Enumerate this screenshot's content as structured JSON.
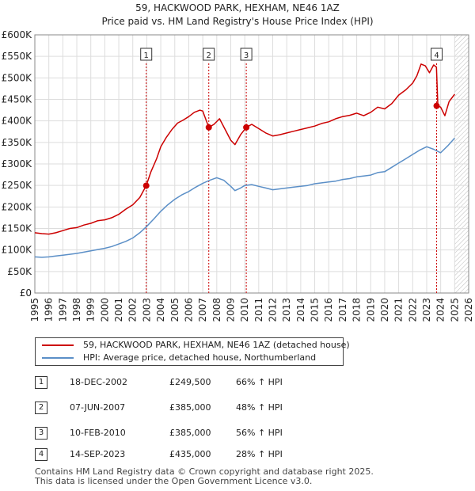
{
  "chart_data": {
    "type": "line",
    "title": "59, HACKWOOD PARK, HEXHAM, NE46 1AZ",
    "subtitle": "Price paid vs. HM Land Registry's House Price Index (HPI)",
    "xlabel": "",
    "ylabel": "",
    "xlim": [
      1995,
      2026
    ],
    "ylim": [
      0,
      600000
    ],
    "y_ticks": [
      {
        "value": 0,
        "label": "£0"
      },
      {
        "value": 50000,
        "label": "£50K"
      },
      {
        "value": 100000,
        "label": "£100K"
      },
      {
        "value": 150000,
        "label": "£150K"
      },
      {
        "value": 200000,
        "label": "£200K"
      },
      {
        "value": 250000,
        "label": "£250K"
      },
      {
        "value": 300000,
        "label": "£300K"
      },
      {
        "value": 350000,
        "label": "£350K"
      },
      {
        "value": 400000,
        "label": "£400K"
      },
      {
        "value": 450000,
        "label": "£450K"
      },
      {
        "value": 500000,
        "label": "£500K"
      },
      {
        "value": 550000,
        "label": "£550K"
      },
      {
        "value": 600000,
        "label": "£600K"
      }
    ],
    "x_ticks": [
      "1995",
      "1996",
      "1997",
      "1998",
      "1999",
      "2000",
      "2001",
      "2002",
      "2003",
      "2004",
      "2005",
      "2006",
      "2007",
      "2008",
      "2009",
      "2010",
      "2011",
      "2012",
      "2013",
      "2014",
      "2015",
      "2016",
      "2017",
      "2018",
      "2019",
      "2020",
      "2021",
      "2022",
      "2023",
      "2024",
      "2025",
      "2026"
    ],
    "grid": true,
    "hatched_future_from": 2025.0,
    "series": [
      {
        "name": "59, HACKWOOD PARK, HEXHAM, NE46 1AZ (detached house)",
        "color": "#cc0000",
        "x": [
          1995.0,
          1995.5,
          1996.0,
          1996.5,
          1997.0,
          1997.5,
          1998.0,
          1998.5,
          1999.0,
          1999.5,
          2000.0,
          2000.5,
          2001.0,
          2001.5,
          2002.0,
          2002.5,
          2002.96,
          2003.3,
          2003.7,
          2004.0,
          2004.4,
          2004.8,
          2005.2,
          2005.6,
          2006.0,
          2006.4,
          2006.8,
          2007.0,
          2007.43,
          2007.8,
          2008.2,
          2008.6,
          2009.0,
          2009.3,
          2009.7,
          2010.11,
          2010.5,
          2011.0,
          2011.5,
          2012.0,
          2012.5,
          2013.0,
          2013.5,
          2014.0,
          2014.5,
          2015.0,
          2015.5,
          2016.0,
          2016.5,
          2017.0,
          2017.5,
          2018.0,
          2018.5,
          2019.0,
          2019.5,
          2020.0,
          2020.5,
          2021.0,
          2021.5,
          2022.0,
          2022.3,
          2022.6,
          2022.9,
          2023.2,
          2023.5,
          2023.7,
          2023.8,
          2024.0,
          2024.3,
          2024.6,
          2025.0
        ],
        "values": [
          140000,
          138000,
          137000,
          140000,
          145000,
          150000,
          152000,
          158000,
          162000,
          168000,
          170000,
          175000,
          183000,
          195000,
          205000,
          222000,
          249500,
          282000,
          312000,
          340000,
          362000,
          380000,
          395000,
          402000,
          410000,
          420000,
          425000,
          423000,
          385000,
          392000,
          405000,
          380000,
          355000,
          345000,
          368000,
          385000,
          392000,
          382000,
          372000,
          365000,
          368000,
          372000,
          376000,
          380000,
          384000,
          388000,
          394000,
          398000,
          405000,
          410000,
          413000,
          418000,
          412000,
          420000,
          432000,
          428000,
          440000,
          460000,
          472000,
          488000,
          505000,
          532000,
          528000,
          512000,
          530000,
          525000,
          435000,
          432000,
          412000,
          445000,
          462000
        ]
      },
      {
        "name": "HPI: Average price, detached house, Northumberland",
        "color": "#5b8fc7",
        "x": [
          1995.0,
          1995.5,
          1996.0,
          1996.5,
          1997.0,
          1997.5,
          1998.0,
          1998.5,
          1999.0,
          1999.5,
          2000.0,
          2000.5,
          2001.0,
          2001.5,
          2002.0,
          2002.5,
          2003.0,
          2003.5,
          2004.0,
          2004.5,
          2005.0,
          2005.5,
          2006.0,
          2006.5,
          2007.0,
          2007.5,
          2008.0,
          2008.5,
          2009.0,
          2009.3,
          2009.7,
          2010.0,
          2010.5,
          2011.0,
          2011.5,
          2012.0,
          2012.5,
          2013.0,
          2013.5,
          2014.0,
          2014.5,
          2015.0,
          2015.5,
          2016.0,
          2016.5,
          2017.0,
          2017.5,
          2018.0,
          2018.5,
          2019.0,
          2019.5,
          2020.0,
          2020.5,
          2021.0,
          2021.5,
          2022.0,
          2022.5,
          2023.0,
          2023.5,
          2024.0,
          2024.5,
          2025.0
        ],
        "values": [
          84000,
          83000,
          84000,
          86000,
          88000,
          90000,
          92000,
          95000,
          98000,
          101000,
          104000,
          108000,
          114000,
          120000,
          128000,
          140000,
          155000,
          172000,
          190000,
          205000,
          218000,
          228000,
          236000,
          246000,
          255000,
          262000,
          268000,
          262000,
          248000,
          238000,
          244000,
          250000,
          252000,
          248000,
          244000,
          240000,
          242000,
          244000,
          246000,
          248000,
          250000,
          254000,
          256000,
          258000,
          260000,
          264000,
          266000,
          270000,
          272000,
          274000,
          280000,
          282000,
          292000,
          302000,
          312000,
          322000,
          332000,
          340000,
          334000,
          326000,
          342000,
          360000
        ]
      }
    ],
    "markers": [
      {
        "label": "1",
        "x": 2002.96,
        "value": 249500
      },
      {
        "label": "2",
        "x": 2007.43,
        "value": 385000
      },
      {
        "label": "3",
        "x": 2010.11,
        "value": 385000
      },
      {
        "label": "4",
        "x": 2023.71,
        "value": 435000
      }
    ]
  },
  "legend": {
    "property_label": "59, HACKWOOD PARK, HEXHAM, NE46 1AZ (detached house)",
    "hpi_label": "HPI: Average price, detached house, Northumberland"
  },
  "sales": [
    {
      "num": "1",
      "date": "18-DEC-2002",
      "price": "£249,500",
      "hpi": "66% ↑ HPI"
    },
    {
      "num": "2",
      "date": "07-JUN-2007",
      "price": "£385,000",
      "hpi": "48% ↑ HPI"
    },
    {
      "num": "3",
      "date": "10-FEB-2010",
      "price": "£385,000",
      "hpi": "56% ↑ HPI"
    },
    {
      "num": "4",
      "date": "14-SEP-2023",
      "price": "£435,000",
      "hpi": "28% ↑ HPI"
    }
  ],
  "footer": {
    "line1": "Contains HM Land Registry data © Crown copyright and database right 2025.",
    "line2": "This data is licensed under the Open Government Licence v3.0."
  },
  "colors": {
    "property": "#cc0000",
    "hpi": "#5b8fc7",
    "grid": "#dddddd",
    "marker_line": "#cc0000"
  }
}
